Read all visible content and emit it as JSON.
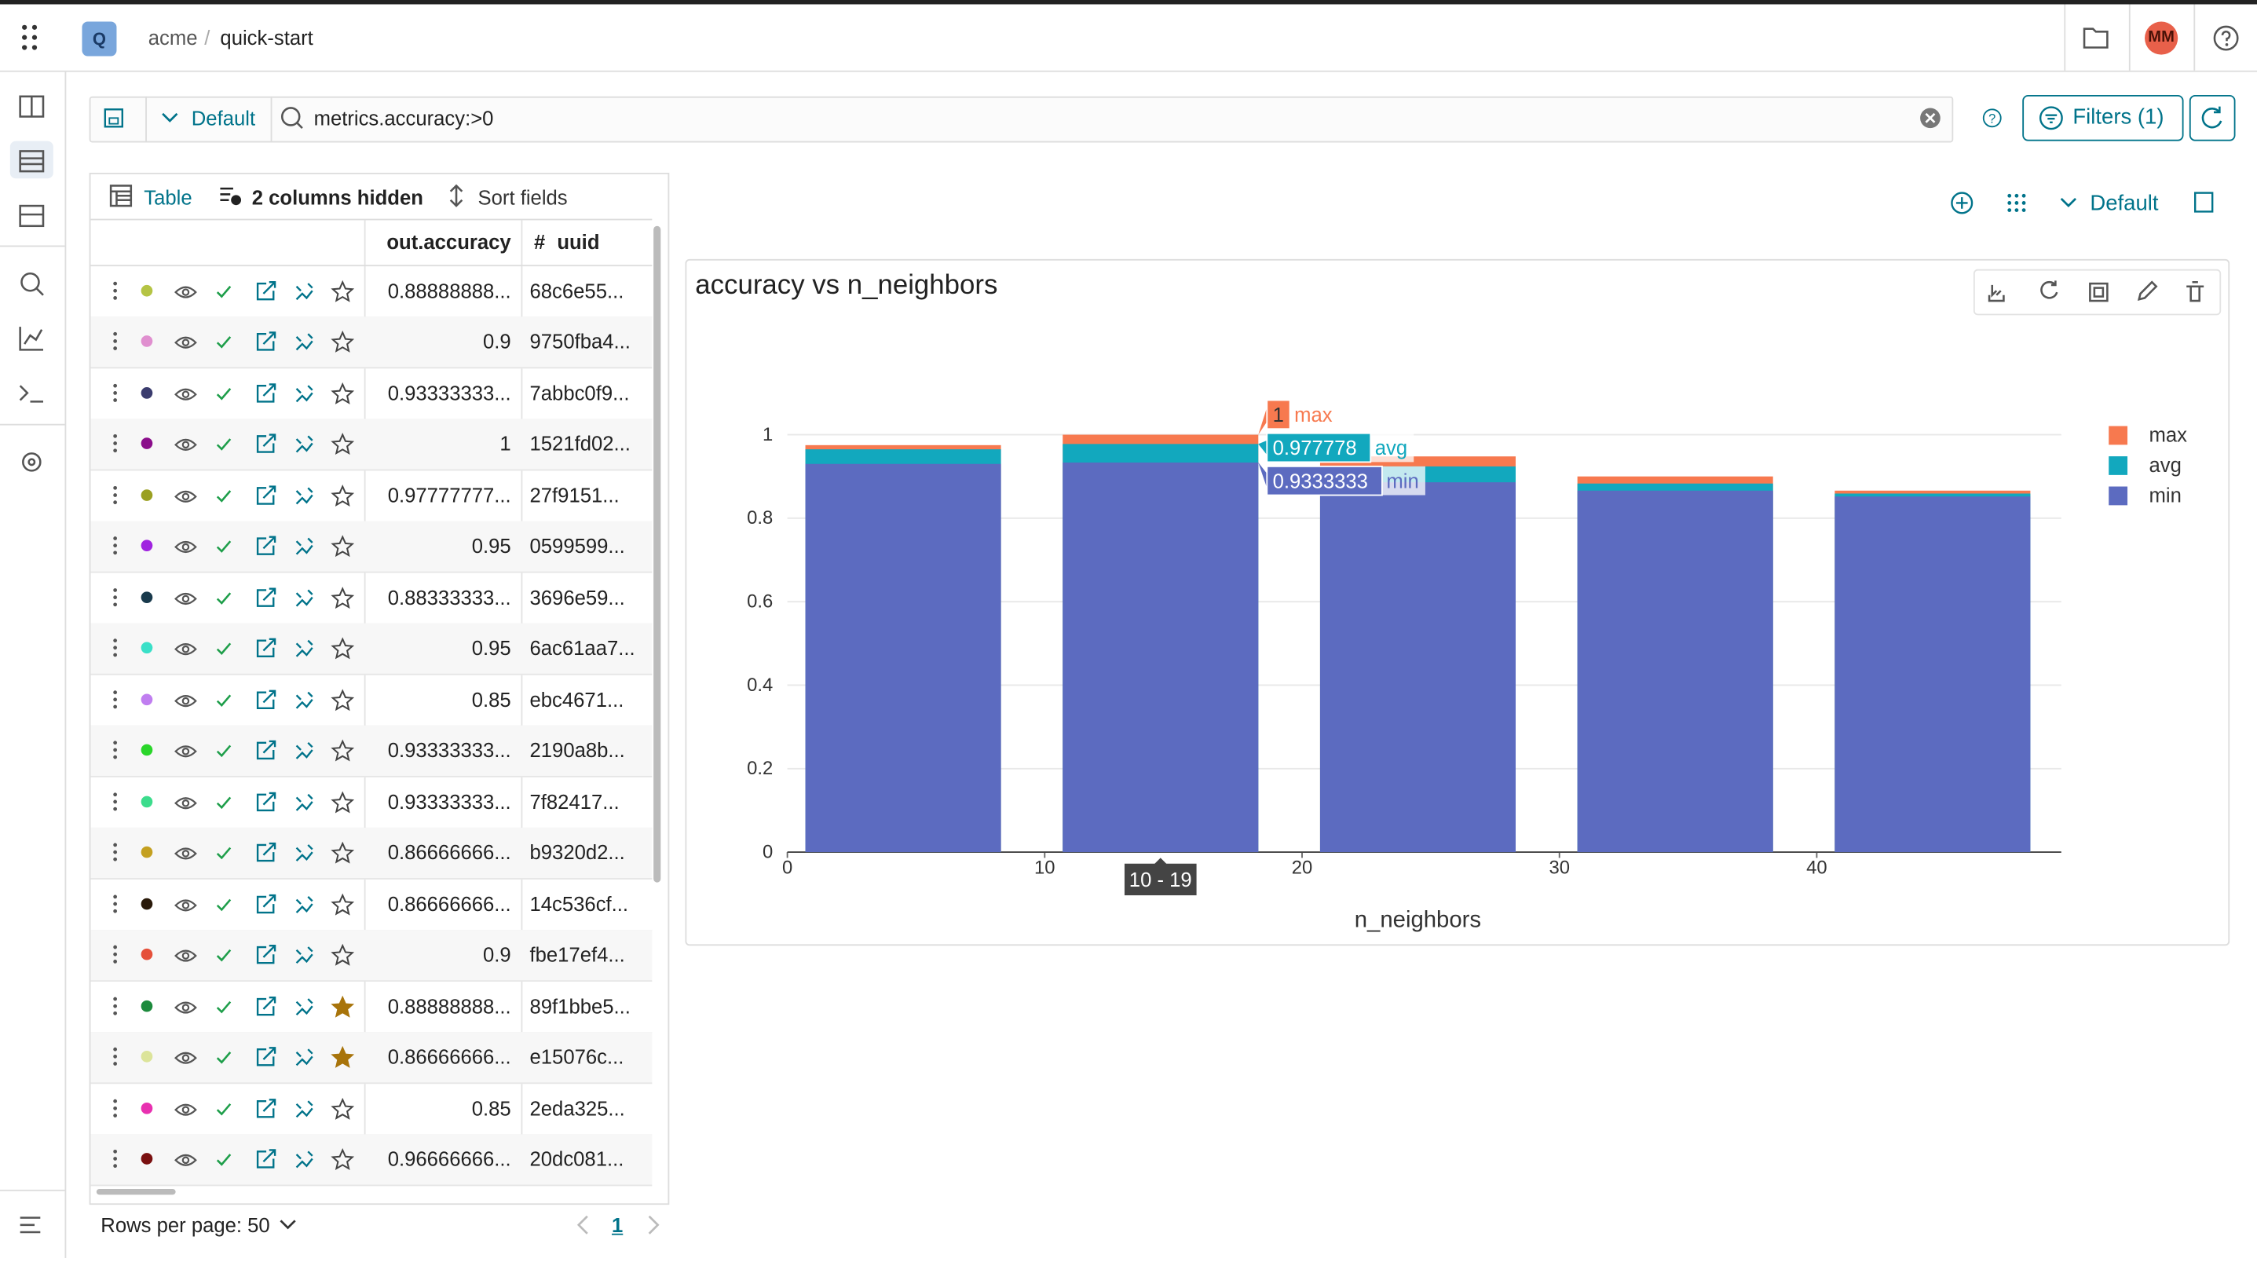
{
  "header": {
    "project_badge": "Q",
    "workspace": "acme",
    "project": "quick-start",
    "avatar": "MM"
  },
  "search": {
    "view": "Default",
    "query": "metrics.accuracy:>0",
    "filters_button": "Filters (1)"
  },
  "table": {
    "toolbar": {
      "view": "Table",
      "hidden_columns": "2 columns hidden",
      "sort": "Sort fields"
    },
    "columns": [
      "out.accuracy",
      "#",
      "uuid"
    ],
    "rows": [
      {
        "color": "#b5c444",
        "accuracy": "0.88888888...",
        "uuid": "68c6e55...",
        "starred": false
      },
      {
        "color": "#e08fcf",
        "accuracy": "0.9",
        "uuid": "9750fba4...",
        "starred": false
      },
      {
        "color": "#3b3c6e",
        "accuracy": "0.93333333...",
        "uuid": "7abbc0f9...",
        "starred": false
      },
      {
        "color": "#8b0d8b",
        "accuracy": "1",
        "uuid": "1521fd02...",
        "starred": false
      },
      {
        "color": "#9aa021",
        "accuracy": "0.97777777...",
        "uuid": "27f9151...",
        "starred": false
      },
      {
        "color": "#a023e0",
        "accuracy": "0.95",
        "uuid": "0599599...",
        "starred": false
      },
      {
        "color": "#193a4c",
        "accuracy": "0.88333333...",
        "uuid": "3696e59...",
        "starred": false
      },
      {
        "color": "#3ae0c8",
        "accuracy": "0.95",
        "uuid": "6ac61aa7...",
        "starred": false
      },
      {
        "color": "#c07ef0",
        "accuracy": "0.85",
        "uuid": "ebc4671...",
        "starred": false
      },
      {
        "color": "#2ad62a",
        "accuracy": "0.93333333...",
        "uuid": "2190a8b...",
        "starred": false
      },
      {
        "color": "#3cdc8c",
        "accuracy": "0.93333333...",
        "uuid": "7f82417...",
        "starred": false
      },
      {
        "color": "#c4a020",
        "accuracy": "0.86666666...",
        "uuid": "b9320d2...",
        "starred": false
      },
      {
        "color": "#2a1a0a",
        "accuracy": "0.86666666...",
        "uuid": "14c536cf...",
        "starred": false
      },
      {
        "color": "#e5503a",
        "accuracy": "0.9",
        "uuid": "fbe17ef4...",
        "starred": false
      },
      {
        "color": "#1c8a3c",
        "accuracy": "0.88888888...",
        "uuid": "89f1bbe5...",
        "starred": true
      },
      {
        "color": "#dce49a",
        "accuracy": "0.86666666...",
        "uuid": "e15076c...",
        "starred": true
      },
      {
        "color": "#e830b0",
        "accuracy": "0.85",
        "uuid": "2eda325...",
        "starred": false
      },
      {
        "color": "#7a1010",
        "accuracy": "0.96666666...",
        "uuid": "20dc081...",
        "starred": false
      }
    ],
    "footer": {
      "rows_per_page": "Rows per page: 50",
      "page": "1"
    }
  },
  "chart_toolbar": {
    "view": "Default"
  },
  "chart_data": {
    "type": "bar",
    "barmode": "overlay",
    "title": "accuracy vs n_neighbors",
    "x_label": "n_neighbors",
    "x": [
      4.5,
      14.5,
      24.5,
      34.5,
      44.5
    ],
    "categories": [
      null,
      "10 - 19",
      null,
      null,
      null
    ],
    "series": [
      {
        "name": "max",
        "color": "#f7794f",
        "values": [
          0.975,
          1,
          0.948,
          0.9,
          0.866
        ],
        "value_labels": [
          null,
          "1",
          null,
          null,
          null
        ]
      },
      {
        "name": "avg",
        "color": "#12a8be",
        "values": [
          0.965,
          0.977778,
          0.924,
          0.883,
          0.859
        ],
        "value_labels": [
          null,
          "0.977778",
          null,
          null,
          null
        ]
      },
      {
        "name": "min",
        "color": "#5c6bc0",
        "values": [
          0.93,
          0.9333333,
          0.886,
          0.866,
          0.852
        ],
        "value_labels": [
          null,
          "0.9333333",
          null,
          null,
          null
        ]
      }
    ],
    "xlim": [
      0,
      49.5
    ],
    "xticks": [
      0,
      10,
      20,
      30,
      40
    ],
    "ylim": [
      0,
      1.2
    ],
    "yticks": [
      0,
      0.2,
      0.4,
      0.6,
      0.8,
      1
    ],
    "grid": true,
    "legend": "right"
  }
}
